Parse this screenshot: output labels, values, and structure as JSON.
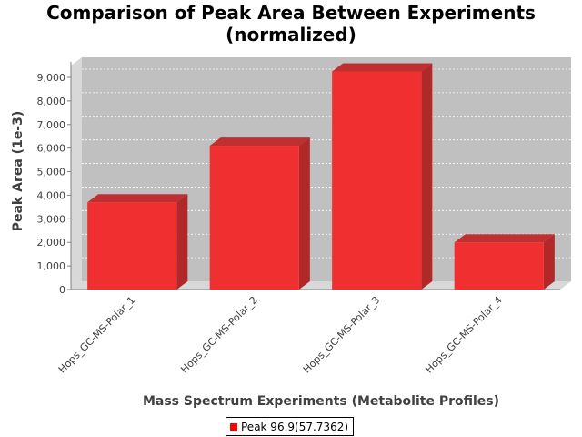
{
  "chart_data": {
    "type": "bar",
    "title": "Comparison of Peak Area Between Experiments",
    "subtitle": "(normalized)",
    "xlabel": "Mass Spectrum Experiments (Metabolite Profiles)",
    "ylabel": "Peak Area (1e-3)",
    "categories": [
      "Hops_GC-MS-Polar_1",
      "Hops_GC-MS-Polar_2",
      "Hops_GC-MS-Polar_3",
      "Hops_GC-MS-Polar_4"
    ],
    "series": [
      {
        "name": "Peak 96.9(57.7362)",
        "values": [
          3700,
          6100,
          9250,
          2000
        ]
      }
    ],
    "ylim": [
      0,
      9500
    ],
    "yticks": [
      0,
      1000,
      2000,
      3000,
      4000,
      5000,
      6000,
      7000,
      8000,
      9000
    ],
    "ytick_labels": [
      "0",
      "1,000",
      "2,000",
      "3,000",
      "4,000",
      "5,000",
      "6,000",
      "7,000",
      "8,000",
      "9,000"
    ],
    "grid": true,
    "legend_position": "bottom",
    "colors": {
      "bar": "#f03030",
      "bar_top": "#c03030",
      "bar_side": "#b02828",
      "plot_bg": "#c0c0c0",
      "plot_wall": "#d8d8d8",
      "grid": "#ffffff",
      "legend_swatch": "#ff0000"
    }
  }
}
